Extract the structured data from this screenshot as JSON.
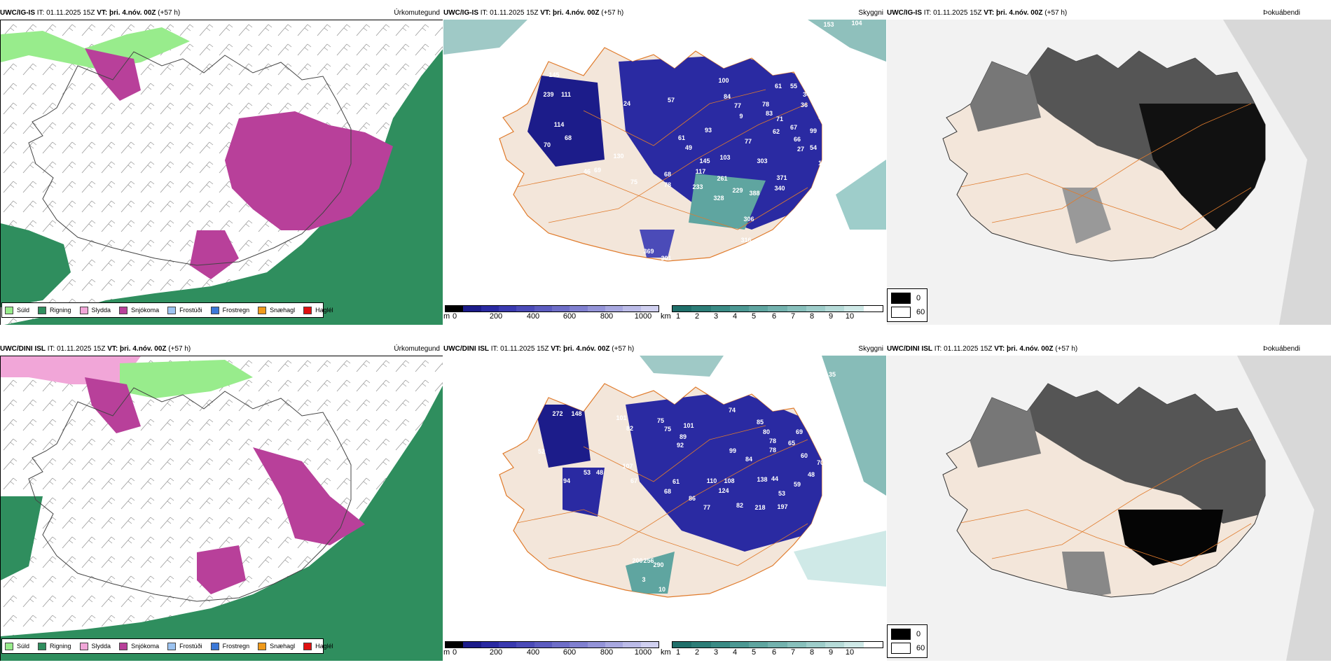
{
  "rows": [
    {
      "model": "UWC/IG-IS",
      "it_label": "IT:",
      "it_value": "01.11.2025 15Z",
      "vt_label": "VT:",
      "vt_value": "þri. 4.nóv. 00Z",
      "lead": "(+57 h)",
      "panels": [
        {
          "title": "Úrkomutegund"
        },
        {
          "title": "Skyggni",
          "peak_labels": [
            "153",
            "104",
            "167",
            "100",
            "84",
            "77",
            "55",
            "61",
            "78",
            "83",
            "56",
            "36",
            "67",
            "62",
            "93",
            "61",
            "57",
            "49",
            "145",
            "103",
            "77",
            "66",
            "99",
            "54",
            "15",
            "303",
            "117",
            "261",
            "371",
            "340",
            "229",
            "388",
            "328",
            "306",
            "316",
            "233",
            "130",
            "75",
            "68",
            "78",
            "46",
            "69",
            "114",
            "68",
            "70",
            "239",
            "111",
            "145",
            "121",
            "47",
            "51",
            "369",
            "301",
            "14",
            "27",
            "9",
            "71",
            "24",
            "27",
            "34"
          ]
        },
        {
          "title": "Þokuábendi"
        }
      ]
    },
    {
      "model": "UWC/DINI ISL",
      "it_label": "IT:",
      "it_value": "01.11.2025 15Z",
      "vt_label": "VT:",
      "vt_value": "þri. 4.nóv. 00Z",
      "lead": "(+57 h)",
      "panels": [
        {
          "title": "Úrkomutegund"
        },
        {
          "title": "Skyggni",
          "peak_labels": [
            "133",
            "110",
            "272",
            "148",
            "101",
            "82",
            "75",
            "75",
            "101",
            "89",
            "92",
            "74",
            "85",
            "76",
            "66",
            "80",
            "78",
            "78",
            "65",
            "69",
            "60",
            "41",
            "70",
            "99",
            "84",
            "110",
            "108",
            "138",
            "44",
            "59",
            "48",
            "53",
            "77",
            "124",
            "82",
            "218",
            "197",
            "86",
            "61",
            "68",
            "107",
            "67",
            "53",
            "48",
            "94",
            "57",
            "52",
            "35",
            "290",
            "256",
            "200",
            "10",
            "3"
          ]
        },
        {
          "title": "Þokuábendi"
        }
      ]
    }
  ],
  "precip_legend": [
    {
      "label": "Súld",
      "color": "#98ec8c"
    },
    {
      "label": "Rigning",
      "color": "#2f8e5e"
    },
    {
      "label": "Slydda",
      "color": "#f1a6d8"
    },
    {
      "label": "Snjókoma",
      "color": "#b8409a"
    },
    {
      "label": "Frostúði",
      "color": "#9cc3f0"
    },
    {
      "label": "Frostregn",
      "color": "#3b78d8"
    },
    {
      "label": "Snæhagl",
      "color": "#f09a1a"
    },
    {
      "label": "Haglél",
      "color": "#e01010"
    }
  ],
  "height_scale": {
    "unit": "m",
    "ticks": [
      "0",
      "200",
      "400",
      "600",
      "800",
      "1000"
    ],
    "colors": [
      "#000000",
      "#1c1c8a",
      "#2a2aa2",
      "#3a3ab0",
      "#4b4bb8",
      "#5c5cc0",
      "#6e6ec8",
      "#8080d0",
      "#9494d8",
      "#a8a8e0",
      "#bcbce8",
      "#d0d0f0"
    ]
  },
  "visibility_scale": {
    "unit": "km",
    "ticks": [
      "1",
      "2",
      "3",
      "4",
      "5",
      "6",
      "7",
      "8",
      "9",
      "10"
    ],
    "colors": [
      "#1f6f6a",
      "#2c7d77",
      "#3a8b85",
      "#4c9893",
      "#5fa5a0",
      "#73b2ae",
      "#88c0bc",
      "#9ecdca",
      "#b6dbd8",
      "#cfe9e7",
      "#ffffff"
    ]
  },
  "fog_legend": [
    {
      "label": "0",
      "color": "#000000"
    },
    {
      "label": "60",
      "color": "#ffffff"
    }
  ],
  "colors": {
    "rain": "#2f8e5e",
    "drizzle": "#98ec8c",
    "snow": "#b8409a",
    "sleet": "#f1a6d8",
    "low_visibility": "#2a2aa2",
    "visibility_teal": "#5fa5a0",
    "roads": "#e07b2c",
    "land_fog": "#f3e6da"
  }
}
